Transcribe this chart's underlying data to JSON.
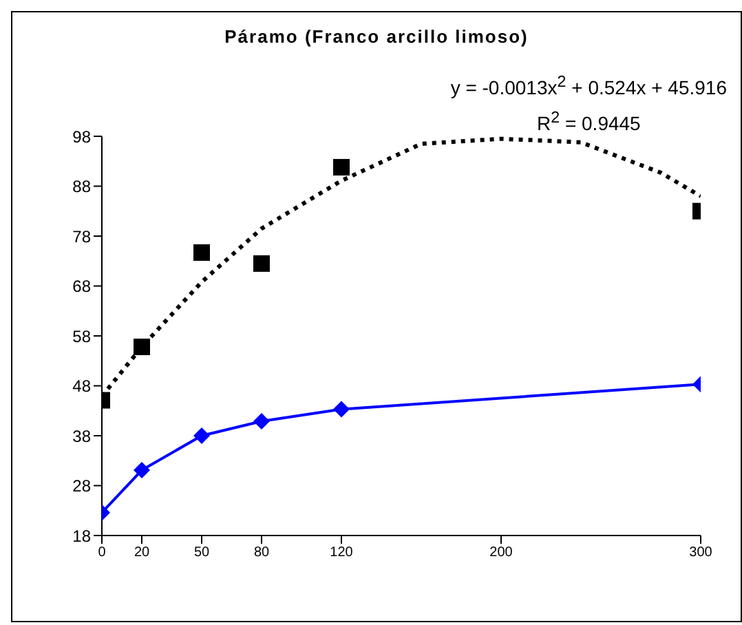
{
  "chart_data": {
    "type": "line",
    "title": "Páramo (Franco arcillo limoso)",
    "annotations": [
      "y = -0.0013x$^{2}$ + 0.524x + 45.916",
      "R$^{2}$ = 0.9445"
    ],
    "x": [
      0,
      20,
      50,
      80,
      120,
      300
    ],
    "series": [
      {
        "type": "scatter",
        "color": "#000000",
        "marker": "square",
        "values": [
          45.1,
          55.8,
          74.7,
          72.5,
          91.8,
          83
        ]
      },
      {
        "type": "line",
        "color": "#000000",
        "marker": "none",
        "line_style": "dotted",
        "x": [
          0,
          20,
          50,
          80,
          120,
          160,
          200,
          240,
          280,
          300
        ],
        "values": [
          45.9,
          55.8,
          68.8,
          79.5,
          89.1,
          96.5,
          97.5,
          96.8,
          90.7,
          86
        ]
      },
      {
        "type": "line",
        "color": "#0000ff",
        "marker": "diamond",
        "line_style": "solid",
        "values": [
          22.6,
          31.1,
          38,
          40.9,
          43.3,
          48.3
        ]
      }
    ],
    "xlim": [
      0,
      300
    ],
    "xticks": [
      0,
      20,
      50,
      80,
      120,
      200,
      300
    ],
    "ylim": [
      18,
      98
    ],
    "yticks": [
      18,
      28,
      38,
      48,
      58,
      68,
      78,
      88,
      98
    ],
    "grid": false
  }
}
